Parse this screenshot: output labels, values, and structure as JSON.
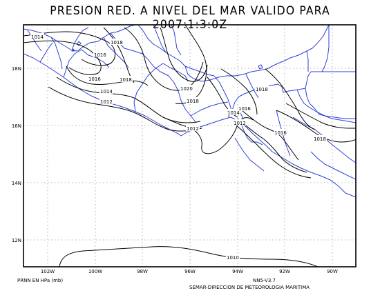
{
  "title": "PRESION RED. A NIVEL DEL MAR VALIDO PARA 2007:1:3:0Z",
  "variable_label": "PRNN EN HPa (mb)",
  "model_version": "NN5-V3.7",
  "credit": "SEMAR-DIRECCION DE METEOROLOGIA MARITIMA",
  "map": {
    "lon_range": [
      -103,
      -89
    ],
    "lat_range": [
      11,
      19.3
    ],
    "lon_ticks": [
      {
        "value": -102,
        "label": "102W"
      },
      {
        "value": -100,
        "label": "100W"
      },
      {
        "value": -98,
        "label": "98W"
      },
      {
        "value": -96,
        "label": "96W"
      },
      {
        "value": -94,
        "label": "94W"
      },
      {
        "value": -92,
        "label": "92W"
      },
      {
        "value": -90,
        "label": "90W"
      }
    ],
    "lat_ticks": [
      {
        "value": 18,
        "label": "18N"
      },
      {
        "value": 16,
        "label": "16N"
      },
      {
        "value": 14,
        "label": "14N"
      },
      {
        "value": 12,
        "label": "12N"
      }
    ],
    "grid": "dotted",
    "colors": {
      "coastline": "#2b3fd6",
      "isobar": "#000000",
      "grid": "#999999"
    },
    "isobar_labels": [
      "1014",
      "1016",
      "1018",
      "1016",
      "1018",
      "1014",
      "1012",
      "1018",
      "1020",
      "1018",
      "1014",
      "1016",
      "1012",
      "1012",
      "1016",
      "1018",
      "1016",
      "1018",
      "1010"
    ]
  }
}
